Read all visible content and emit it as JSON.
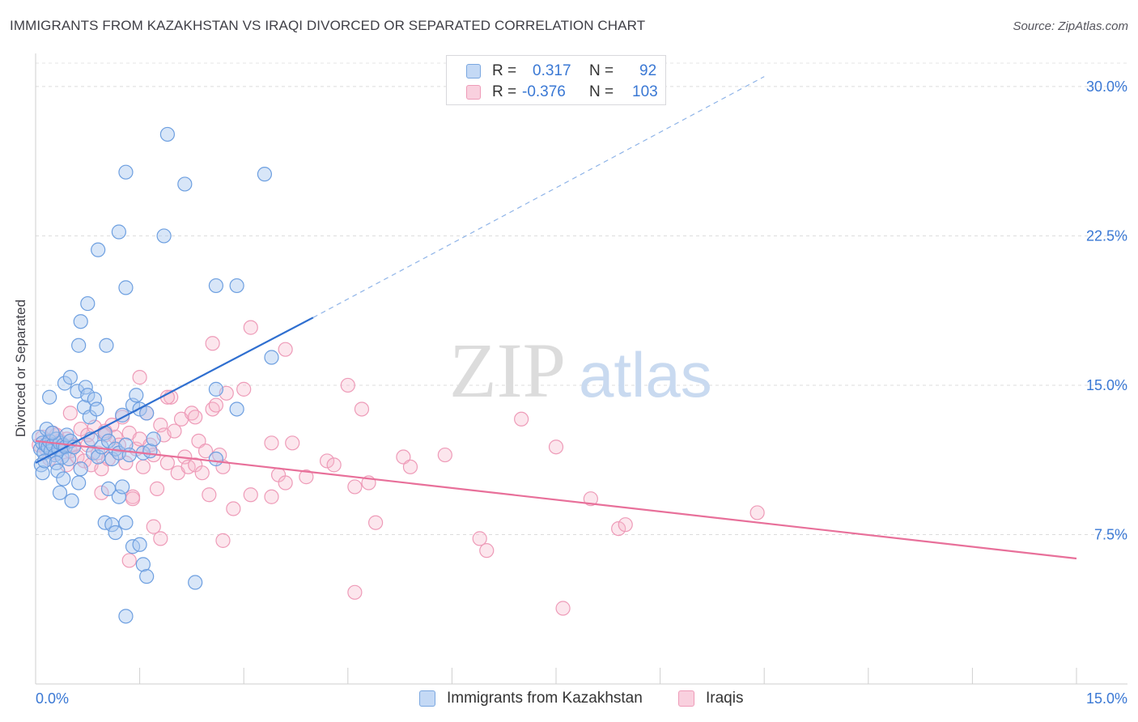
{
  "header": {
    "title": "IMMIGRANTS FROM KAZAKHSTAN VS IRAQI DIVORCED OR SEPARATED CORRELATION CHART",
    "source": "Source: ZipAtlas.com"
  },
  "watermark": {
    "zip": "ZIP",
    "atlas": "atlas"
  },
  "legend": {
    "series1": {
      "r_label": "R =",
      "r_value": "0.317",
      "n_label": "N =",
      "n_value": "92",
      "color": "#a9c8f0"
    },
    "series2": {
      "r_label": "R =",
      "r_value": "-0.376",
      "n_label": "N =",
      "n_value": "103",
      "color": "#f5b8cc"
    }
  },
  "bottom_legend": {
    "series1_name": "Immigrants from Kazakhstan",
    "series2_name": "Iraqis"
  },
  "chart_data": {
    "type": "scatter",
    "title": "IMMIGRANTS FROM KAZAKHSTAN VS IRAQI DIVORCED OR SEPARATED CORRELATION CHART",
    "xlabel": "",
    "ylabel": "Divorced or Separated",
    "xlim": [
      0,
      15
    ],
    "ylim": [
      0,
      31.5
    ],
    "x_tick_labels": [
      "0.0%",
      "15.0%"
    ],
    "y_ticks": [
      7.5,
      15.0,
      22.5,
      30.0
    ],
    "y_tick_labels": [
      "7.5%",
      "15.0%",
      "22.5%",
      "30.0%"
    ],
    "grid": "horizontal dashed",
    "colors": {
      "blue": "#5b9be6",
      "blue_line": "#2f6fd0",
      "pink": "#f08fb0",
      "pink_line": "#e8709a"
    },
    "series": [
      {
        "name": "Immigrants from Kazakhstan",
        "color": "#5b9be6",
        "trend": {
          "x": [
            0,
            4.0
          ],
          "y": [
            11.1,
            18.4
          ],
          "dashed_extension_to": [
            10.5,
            30.5
          ]
        },
        "points": [
          [
            0.05,
            12.4
          ],
          [
            0.07,
            11.8
          ],
          [
            0.1,
            12.1
          ],
          [
            0.12,
            11.6
          ],
          [
            0.15,
            12.0
          ],
          [
            0.18,
            11.9
          ],
          [
            0.2,
            12.2
          ],
          [
            0.22,
            11.7
          ],
          [
            0.25,
            12.0
          ],
          [
            0.28,
            11.5
          ],
          [
            0.3,
            12.3
          ],
          [
            0.33,
            11.8
          ],
          [
            0.35,
            12.1
          ],
          [
            0.38,
            11.4
          ],
          [
            0.4,
            12.0
          ],
          [
            0.43,
            11.9
          ],
          [
            0.45,
            12.5
          ],
          [
            0.48,
            11.3
          ],
          [
            0.5,
            12.2
          ],
          [
            0.08,
            11.0
          ],
          [
            0.1,
            10.6
          ],
          [
            0.13,
            11.2
          ],
          [
            0.16,
            12.8
          ],
          [
            0.2,
            14.4
          ],
          [
            0.24,
            12.6
          ],
          [
            0.3,
            11.1
          ],
          [
            0.32,
            10.7
          ],
          [
            0.35,
            9.6
          ],
          [
            0.4,
            10.3
          ],
          [
            0.42,
            15.1
          ],
          [
            0.5,
            15.4
          ],
          [
            0.52,
            9.2
          ],
          [
            0.55,
            11.9
          ],
          [
            0.6,
            14.7
          ],
          [
            0.62,
            10.1
          ],
          [
            0.65,
            10.8
          ],
          [
            0.7,
            13.9
          ],
          [
            0.72,
            14.9
          ],
          [
            0.75,
            14.5
          ],
          [
            0.78,
            13.4
          ],
          [
            0.8,
            12.3
          ],
          [
            0.83,
            11.6
          ],
          [
            0.85,
            14.3
          ],
          [
            0.88,
            13.8
          ],
          [
            0.9,
            11.4
          ],
          [
            0.95,
            11.9
          ],
          [
            1.0,
            12.6
          ],
          [
            0.75,
            19.1
          ],
          [
            0.65,
            18.2
          ],
          [
            0.62,
            17.0
          ],
          [
            1.02,
            17.0
          ],
          [
            1.05,
            12.2
          ],
          [
            1.1,
            11.3
          ],
          [
            1.15,
            11.8
          ],
          [
            1.2,
            11.6
          ],
          [
            1.25,
            13.5
          ],
          [
            1.3,
            12.0
          ],
          [
            1.35,
            11.5
          ],
          [
            1.4,
            14.0
          ],
          [
            1.45,
            14.5
          ],
          [
            1.5,
            13.8
          ],
          [
            1.55,
            11.6
          ],
          [
            1.6,
            13.6
          ],
          [
            1.65,
            11.7
          ],
          [
            1.7,
            12.3
          ],
          [
            1.0,
            8.1
          ],
          [
            1.05,
            9.8
          ],
          [
            1.1,
            8.0
          ],
          [
            1.15,
            7.6
          ],
          [
            1.2,
            9.4
          ],
          [
            1.25,
            9.9
          ],
          [
            1.3,
            8.1
          ],
          [
            1.4,
            6.9
          ],
          [
            1.5,
            7.0
          ],
          [
            1.55,
            6.0
          ],
          [
            1.6,
            5.4
          ],
          [
            0.9,
            21.8
          ],
          [
            1.2,
            22.7
          ],
          [
            1.3,
            19.9
          ],
          [
            1.3,
            25.7
          ],
          [
            1.9,
            27.6
          ],
          [
            2.15,
            25.1
          ],
          [
            1.85,
            22.5
          ],
          [
            2.6,
            20.0
          ],
          [
            2.9,
            20.0
          ],
          [
            3.3,
            25.6
          ],
          [
            2.6,
            14.8
          ],
          [
            2.9,
            13.8
          ],
          [
            3.4,
            16.4
          ],
          [
            2.6,
            11.3
          ],
          [
            1.3,
            3.4
          ],
          [
            2.3,
            5.1
          ]
        ]
      },
      {
        "name": "Iraqis",
        "color": "#f08fb0",
        "trend": {
          "x": [
            0,
            15.0
          ],
          "y": [
            12.2,
            6.3
          ]
        },
        "points": [
          [
            0.05,
            12.0
          ],
          [
            0.1,
            12.4
          ],
          [
            0.15,
            11.8
          ],
          [
            0.2,
            12.1
          ],
          [
            0.25,
            12.6
          ],
          [
            0.3,
            11.6
          ],
          [
            0.35,
            12.2
          ],
          [
            0.4,
            11.9
          ],
          [
            0.45,
            12.3
          ],
          [
            0.5,
            11.7
          ],
          [
            0.55,
            12.0
          ],
          [
            0.6,
            11.4
          ],
          [
            0.65,
            12.8
          ],
          [
            0.7,
            11.2
          ],
          [
            0.75,
            12.5
          ],
          [
            0.8,
            11.0
          ],
          [
            0.85,
            12.9
          ],
          [
            0.9,
            11.6
          ],
          [
            0.95,
            10.8
          ],
          [
            1.0,
            12.7
          ],
          [
            1.05,
            11.3
          ],
          [
            1.1,
            13.0
          ],
          [
            1.15,
            12.4
          ],
          [
            1.2,
            11.6
          ],
          [
            1.25,
            13.4
          ],
          [
            1.3,
            11.1
          ],
          [
            1.35,
            12.6
          ],
          [
            1.4,
            9.4
          ],
          [
            1.45,
            11.8
          ],
          [
            1.5,
            12.3
          ],
          [
            1.55,
            10.9
          ],
          [
            1.6,
            13.6
          ],
          [
            1.65,
            12.0
          ],
          [
            1.7,
            11.5
          ],
          [
            1.75,
            9.8
          ],
          [
            1.8,
            13.0
          ],
          [
            1.85,
            12.5
          ],
          [
            1.9,
            11.1
          ],
          [
            1.95,
            14.4
          ],
          [
            2.0,
            12.7
          ],
          [
            2.05,
            10.6
          ],
          [
            2.1,
            13.3
          ],
          [
            2.15,
            11.4
          ],
          [
            2.2,
            10.9
          ],
          [
            2.25,
            13.6
          ],
          [
            2.3,
            11.0
          ],
          [
            2.35,
            12.2
          ],
          [
            2.4,
            10.6
          ],
          [
            2.45,
            11.7
          ],
          [
            2.5,
            9.5
          ],
          [
            2.55,
            13.8
          ],
          [
            2.6,
            14.0
          ],
          [
            2.65,
            11.5
          ],
          [
            2.7,
            10.9
          ],
          [
            2.75,
            14.6
          ],
          [
            2.85,
            8.8
          ],
          [
            3.0,
            14.8
          ],
          [
            3.1,
            9.5
          ],
          [
            3.4,
            9.4
          ],
          [
            3.5,
            10.5
          ],
          [
            3.6,
            10.1
          ],
          [
            3.9,
            10.4
          ],
          [
            4.2,
            11.2
          ],
          [
            4.3,
            11.0
          ],
          [
            4.5,
            15.0
          ],
          [
            4.6,
            9.9
          ],
          [
            4.7,
            13.8
          ],
          [
            4.8,
            10.1
          ],
          [
            4.9,
            8.1
          ],
          [
            5.3,
            11.4
          ],
          [
            5.4,
            10.9
          ],
          [
            5.9,
            11.5
          ],
          [
            6.4,
            7.3
          ],
          [
            6.5,
            6.7
          ],
          [
            7.0,
            13.3
          ],
          [
            7.5,
            11.9
          ],
          [
            7.6,
            3.8
          ],
          [
            8.0,
            9.3
          ],
          [
            8.4,
            7.8
          ],
          [
            8.5,
            8.0
          ],
          [
            10.4,
            8.6
          ],
          [
            4.6,
            4.6
          ],
          [
            3.1,
            17.9
          ],
          [
            3.6,
            16.8
          ],
          [
            2.55,
            17.1
          ],
          [
            1.5,
            15.4
          ],
          [
            1.9,
            14.4
          ],
          [
            0.95,
            9.6
          ],
          [
            1.35,
            6.2
          ],
          [
            1.7,
            7.9
          ],
          [
            1.8,
            7.3
          ],
          [
            2.7,
            7.2
          ],
          [
            1.4,
            9.3
          ],
          [
            0.5,
            13.6
          ],
          [
            0.75,
            12.0
          ],
          [
            1.0,
            12.5
          ],
          [
            2.3,
            13.4
          ],
          [
            0.3,
            12.5
          ],
          [
            0.2,
            11.3
          ],
          [
            0.45,
            11.0
          ],
          [
            1.2,
            12.0
          ],
          [
            3.4,
            12.1
          ],
          [
            3.7,
            12.1
          ]
        ]
      }
    ]
  }
}
